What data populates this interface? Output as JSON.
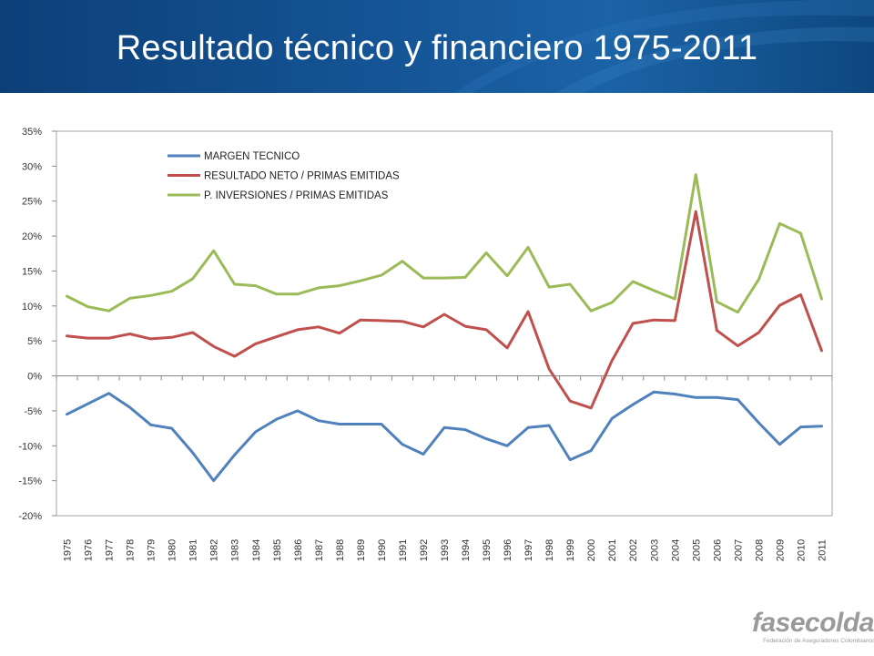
{
  "slide": {
    "title": "Resultado técnico y financiero 1975-2011"
  },
  "logo": {
    "name": "fasecolda",
    "subtitle": "Federación de Aseguradores Colombianos"
  },
  "colors": {
    "banner": "#155596",
    "series": [
      "#4f81bd",
      "#c0504d",
      "#9bbb59"
    ]
  },
  "chart_data": {
    "type": "line",
    "title": "",
    "xlabel": "",
    "ylabel": "",
    "ylim": [
      -20,
      35
    ],
    "y_ticks": [
      35,
      30,
      25,
      20,
      15,
      10,
      5,
      0,
      -5,
      -10,
      -15,
      -20
    ],
    "y_tick_labels": [
      "35%",
      "30%",
      "25%",
      "20%",
      "15%",
      "10%",
      "5%",
      "0%",
      "-5%",
      "-10%",
      "-15%",
      "-20%"
    ],
    "grid": false,
    "legend_position": "top-left",
    "categories": [
      "1975",
      "1976",
      "1977",
      "1978",
      "1979",
      "1980",
      "1981",
      "1982",
      "1983",
      "1984",
      "1985",
      "1986",
      "1987",
      "1988",
      "1989",
      "1990",
      "1991",
      "1992",
      "1993",
      "1994",
      "1995",
      "1996",
      "1997",
      "1998",
      "1999",
      "2000",
      "2001",
      "2002",
      "2003",
      "2004",
      "2005",
      "2006",
      "2007",
      "2008",
      "2009",
      "2010",
      "2011"
    ],
    "series": [
      {
        "name": "MARGEN TECNICO",
        "color": "#4f81bd",
        "values": [
          -5.5,
          -4,
          -2.5,
          -4.5,
          -7,
          -7.5,
          -11,
          -15,
          -11.3,
          -8,
          -6.2,
          -5,
          -6.4,
          -6.9,
          -6.9,
          -6.9,
          -9.8,
          -11.2,
          -7.4,
          -7.7,
          -9,
          -10,
          -7.4,
          -7.1,
          -12,
          -10.7,
          -6.1,
          -4.1,
          -2.3,
          -2.6,
          -3.1,
          -3.1,
          -3.4,
          -6.7,
          -9.8,
          -7.3,
          -7.2
        ]
      },
      {
        "name": "RESULTADO NETO / PRIMAS EMITIDAS",
        "color": "#c0504d",
        "values": [
          5.7,
          5.4,
          5.4,
          6.0,
          5.3,
          5.5,
          6.2,
          4.2,
          2.8,
          4.6,
          5.6,
          6.6,
          7.0,
          6.1,
          8.0,
          7.9,
          7.8,
          7.0,
          8.8,
          7.1,
          6.6,
          4.0,
          9.2,
          1.0,
          -3.6,
          -4.6,
          2.2,
          7.5,
          8.0,
          7.9,
          23.5,
          6.5,
          4.3,
          6.2,
          10.1,
          11.6,
          3.6
        ]
      },
      {
        "name": "P. INVERSIONES / PRIMAS EMITIDAS",
        "color": "#9bbb59",
        "values": [
          11.4,
          9.9,
          9.3,
          11.1,
          11.5,
          12.1,
          13.9,
          17.9,
          13.1,
          12.9,
          11.7,
          11.7,
          12.6,
          12.9,
          13.6,
          14.4,
          16.4,
          14.0,
          14.0,
          14.1,
          17.6,
          14.3,
          18.4,
          12.7,
          13.1,
          9.3,
          10.5,
          13.5,
          12.2,
          11.0,
          28.8,
          10.6,
          9.1,
          13.8,
          21.8,
          20.4,
          11.0
        ]
      }
    ]
  }
}
